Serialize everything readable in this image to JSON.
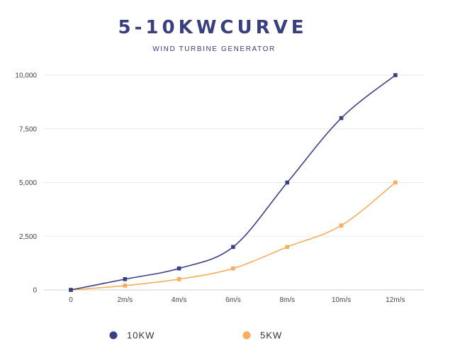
{
  "chart_data": {
    "type": "line",
    "title": "5-10KWCURVE",
    "subtitle": "WIND TURBINE GENERATOR",
    "xlabel": "",
    "ylabel": "",
    "categories": [
      "0",
      "2m/s",
      "4m/s",
      "6m/s",
      "8m/s",
      "10m/s",
      "12m/s"
    ],
    "series": [
      {
        "name": "10KW",
        "color": "#3b3f86",
        "values": [
          0,
          500,
          1000,
          2000,
          5000,
          8000,
          10000
        ]
      },
      {
        "name": "5KW",
        "color": "#f6ad5c",
        "values": [
          0,
          200,
          500,
          1000,
          2000,
          3000,
          5000
        ]
      }
    ],
    "ylim": [
      0,
      10000
    ],
    "yticks": [
      0,
      2500,
      5000,
      7500,
      10000
    ],
    "ytick_labels": [
      "0",
      "2,500",
      "5,000",
      "7,500",
      "10,000"
    ],
    "grid": true,
    "legend_position": "bottom",
    "marker": "square",
    "smooth": true
  }
}
